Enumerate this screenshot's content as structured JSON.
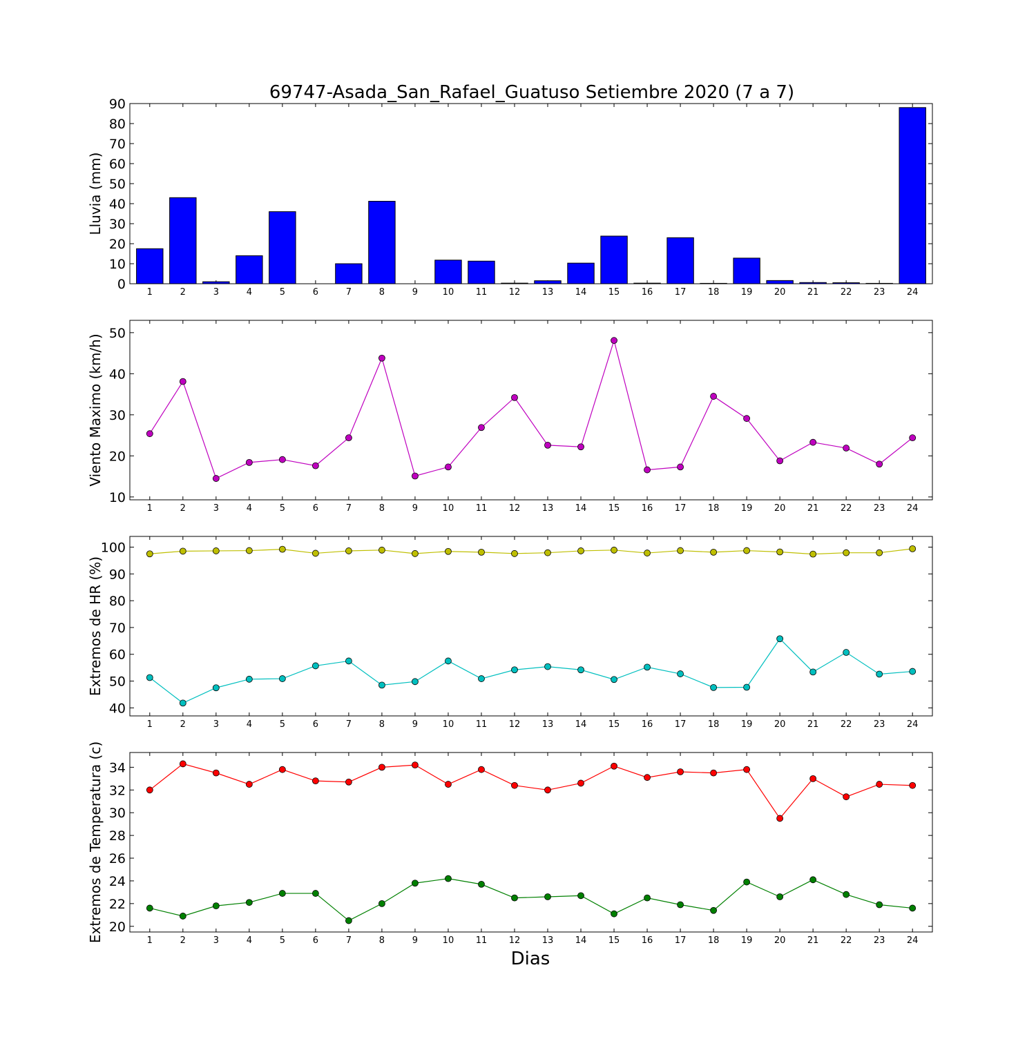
{
  "chart_data": {
    "title": "69747-Asada_San_Rafael_Guatuso Setiembre 2020  (7 a 7)",
    "xlabel": "Dias",
    "days": [
      1,
      2,
      3,
      4,
      5,
      6,
      7,
      8,
      9,
      10,
      11,
      12,
      13,
      14,
      15,
      16,
      17,
      18,
      19,
      20,
      21,
      22,
      23,
      24
    ],
    "panels": [
      {
        "type": "bar",
        "ylabel": "Lluvia (mm)",
        "ylim": [
          0,
          90
        ],
        "yticks": [
          0,
          10,
          20,
          30,
          40,
          50,
          60,
          70,
          80,
          90
        ],
        "series": [
          {
            "color": "#0000ff",
            "values": [
              17.5,
              43,
              1,
              14,
              36,
              0,
              10,
              41.2,
              0,
              11.8,
              11.3,
              0.3,
              1.5,
              10.3,
              23.8,
              0.3,
              23,
              0.2,
              12.8,
              1.6,
              0.6,
              0.5,
              0.2,
              88
            ]
          }
        ]
      },
      {
        "type": "line",
        "ylabel": "Viento Maximo (km/h)",
        "ylim": [
          9.3,
          53
        ],
        "yticks": [
          10,
          20,
          30,
          40,
          50
        ],
        "series": [
          {
            "color": "#bf00bf",
            "values": [
              25.4,
              38.1,
              14.5,
              18.4,
              19.1,
              17.6,
              24.4,
              43.8,
              15.1,
              17.3,
              26.9,
              34.2,
              22.6,
              22.2,
              48.1,
              16.6,
              17.3,
              34.5,
              29.1,
              18.8,
              23.3,
              21.9,
              18.0,
              24.4
            ]
          }
        ]
      },
      {
        "type": "line",
        "ylabel": "Extremos de HR (%)",
        "ylim": [
          37,
          104
        ],
        "yticks": [
          40,
          50,
          60,
          70,
          80,
          90,
          100
        ],
        "series": [
          {
            "color": "#bfbf00",
            "values": [
              97.5,
              98.5,
              98.6,
              98.7,
              99.2,
              97.7,
              98.6,
              98.9,
              97.6,
              98.4,
              98.1,
              97.6,
              97.9,
              98.6,
              98.9,
              97.8,
              98.7,
              98.1,
              98.7,
              98.2,
              97.4,
              97.9,
              97.9,
              99.4
            ]
          },
          {
            "color": "#00bfbf",
            "values": [
              51.3,
              41.8,
              47.5,
              50.7,
              50.9,
              55.7,
              57.5,
              48.5,
              49.8,
              57.5,
              50.9,
              54.2,
              55.4,
              54.2,
              50.6,
              55.2,
              52.7,
              47.6,
              47.7,
              65.8,
              53.4,
              60.7,
              52.6,
              53.6
            ]
          }
        ]
      },
      {
        "type": "line",
        "ylabel": "Extremos de Temperatura (c)",
        "ylim": [
          19.5,
          35.3
        ],
        "yticks": [
          20,
          22,
          24,
          26,
          28,
          30,
          32,
          34
        ],
        "series": [
          {
            "color": "#ff0000",
            "values": [
              32.0,
              34.3,
              33.5,
              32.5,
              33.8,
              32.8,
              32.7,
              34.0,
              34.2,
              32.5,
              33.8,
              32.4,
              32.0,
              32.6,
              34.1,
              33.1,
              33.6,
              33.5,
              33.8,
              29.5,
              33.0,
              31.4,
              32.5,
              32.4
            ]
          },
          {
            "color": "#008000",
            "values": [
              21.6,
              20.9,
              21.8,
              22.1,
              22.9,
              22.9,
              20.5,
              22.0,
              23.8,
              24.2,
              23.7,
              22.5,
              22.6,
              22.7,
              21.1,
              22.5,
              21.9,
              21.4,
              23.9,
              22.6,
              24.1,
              22.8,
              21.9,
              21.6
            ]
          }
        ]
      }
    ]
  }
}
